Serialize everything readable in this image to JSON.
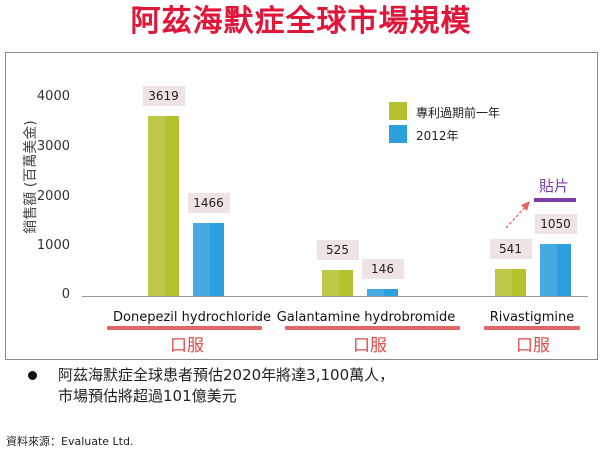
{
  "title": "阿茲海默症全球市場規模",
  "chart_data": {
    "type": "bar",
    "title": "阿茲海默症全球市場規模",
    "ylabel": "銷售額 (百萬美金)",
    "xlabel": "",
    "ylim": [
      0,
      4000
    ],
    "yticks": [
      "4000",
      "3000",
      "2000",
      "1000",
      "0"
    ],
    "categories": [
      "Donepezil hydrochloride",
      "Galantamine hydrobromide",
      "Rivastigmine"
    ],
    "series": [
      {
        "name": "專利過期前一年",
        "color": "#b5c230",
        "values": [
          3619,
          525,
          541
        ],
        "labels": [
          "3619",
          "525",
          "541"
        ]
      },
      {
        "name": "2012年",
        "color": "#2c9fdd",
        "values": [
          1466,
          146,
          1050
        ],
        "labels": [
          "1466",
          "146",
          "1050"
        ]
      }
    ],
    "route_labels": [
      "口服",
      "口服",
      "口服"
    ],
    "annotation": "貼片"
  },
  "colors": {
    "title": "#e0173b",
    "route": "#e04b4b",
    "patch": "#7b3fa3"
  },
  "notes": [
    "阿茲海默症全球患者預估2020年將達3,100萬人，",
    "市場預估將超過101億美元"
  ],
  "source": "資料來源：Evaluate Ltd."
}
